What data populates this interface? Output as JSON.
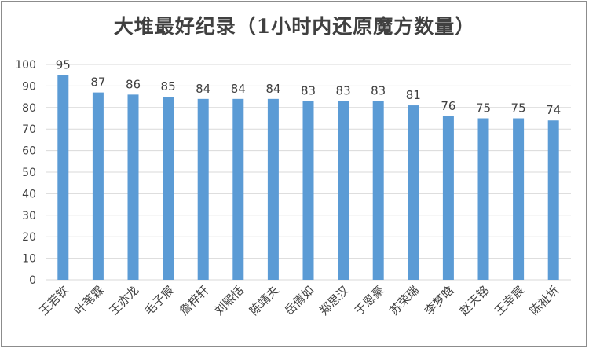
{
  "chart_data": {
    "type": "bar",
    "title": "大堆最好纪录（1小时内还原魔方数量）",
    "xlabel": "",
    "ylabel": "",
    "categories": [
      "王若钦",
      "叶苇霖",
      "王亦龙",
      "毛子宸",
      "詹梓轩",
      "刘熙恬",
      "陈靖夫",
      "岳倩如",
      "郑思汉",
      "于恩豪",
      "苏荣瑞",
      "李梦晗",
      "赵天铭",
      "王幸宸",
      "陈祉圻"
    ],
    "values": [
      95,
      87,
      86,
      85,
      84,
      84,
      84,
      83,
      83,
      83,
      81,
      76,
      75,
      75,
      74
    ],
    "ylim": [
      0,
      100
    ],
    "yticks": [
      0,
      10,
      20,
      30,
      40,
      50,
      60,
      70,
      80,
      90,
      100
    ],
    "grid": true,
    "legend": "none",
    "data_labels": true,
    "colors": {
      "bar": "#5b9bd5",
      "grid": "#d9d9d9",
      "text": "#404040",
      "border": "#8c8c8c"
    }
  }
}
